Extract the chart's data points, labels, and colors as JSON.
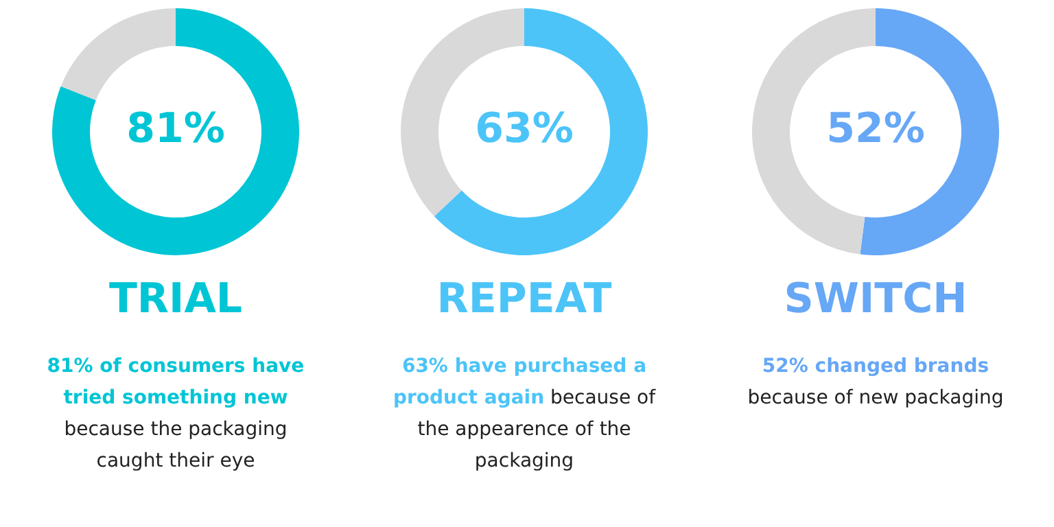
{
  "chart_data": [
    {
      "type": "donut",
      "title": "TRIAL",
      "categories": [
        null,
        null
      ],
      "values": [
        81,
        19
      ],
      "colors": [
        "#00c5d5",
        "#d9d9d9"
      ],
      "value_labels": [
        "81%",
        null
      ],
      "annotations": [
        "81% of consumers have tried something new",
        "because the packaging caught their eye"
      ]
    },
    {
      "type": "donut",
      "title": "REPEAT",
      "categories": [
        null,
        null
      ],
      "values": [
        63,
        37
      ],
      "colors": [
        "#4cc4f8",
        "#d9d9d9"
      ],
      "value_labels": [
        "63%",
        null
      ],
      "annotations": [
        "63% have purchased a product again",
        "because of the appearence of the packaging"
      ]
    },
    {
      "type": "donut",
      "title": "SWITCH",
      "categories": [
        null,
        null
      ],
      "values": [
        52,
        48
      ],
      "colors": [
        "#66a7f6",
        "#d9d9d9"
      ],
      "value_labels": [
        "52%",
        null
      ],
      "annotations": [
        "52% changed brands",
        "because of new packaging"
      ]
    }
  ]
}
